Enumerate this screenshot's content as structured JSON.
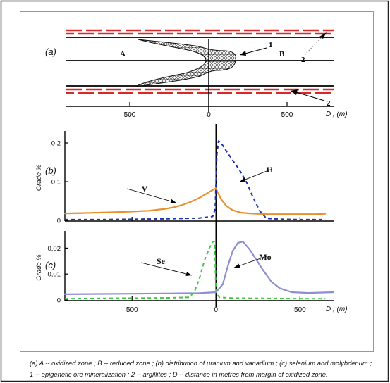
{
  "panels": {
    "a": {
      "panel_label": "(a)",
      "zone_a_label": "A",
      "zone_b_label": "B",
      "callout_1": "1",
      "callout_2_top": "2",
      "callout_2_bottom": "2",
      "axis_ticks": [
        "500",
        "0",
        "500"
      ],
      "axis_unit": "D , (m)"
    }
  },
  "chart_data": [
    {
      "panel_label": "(b)",
      "type": "line",
      "xlabel": "D , (m)",
      "ylabel": "Grade %",
      "xlim": [
        -900,
        700
      ],
      "ylim": [
        0,
        0.22
      ],
      "xticks": [
        -500,
        0,
        500
      ],
      "xtick_labels": [
        "500",
        "0",
        "500"
      ],
      "yticks": [
        0,
        0.1,
        0.2
      ],
      "ytick_labels": [
        "0",
        "0,1",
        "0,2"
      ],
      "grid": false,
      "series": [
        {
          "name": "V",
          "color": "#e8912c",
          "style": "solid",
          "x": [
            -900,
            -800,
            -700,
            -600,
            -500,
            -400,
            -300,
            -250,
            -200,
            -150,
            -100,
            -60,
            -30,
            -10,
            0,
            10,
            30,
            60,
            100,
            150,
            200,
            300,
            400,
            500,
            600,
            650
          ],
          "y": [
            0.018,
            0.019,
            0.02,
            0.021,
            0.023,
            0.025,
            0.03,
            0.034,
            0.04,
            0.048,
            0.058,
            0.068,
            0.076,
            0.081,
            0.083,
            0.072,
            0.055,
            0.038,
            0.026,
            0.02,
            0.018,
            0.016,
            0.016,
            0.016,
            0.016,
            0.017
          ]
        },
        {
          "name": "U",
          "color": "#1f2fb4",
          "style": "dashed",
          "x": [
            -900,
            -700,
            -500,
            -300,
            -100,
            -20,
            -5,
            0,
            5,
            15,
            30,
            60,
            100,
            140,
            180,
            220,
            260,
            300,
            400,
            500,
            650
          ],
          "y": [
            0.002,
            0.002,
            0.003,
            0.004,
            0.006,
            0.01,
            0.03,
            0.1,
            0.17,
            0.205,
            0.2,
            0.18,
            0.155,
            0.13,
            0.1,
            0.06,
            0.025,
            0.005,
            0.003,
            0.002,
            0.002
          ]
        }
      ],
      "annotations": [
        "V",
        "U"
      ]
    },
    {
      "panel_label": "(c)",
      "type": "line",
      "xlabel": "D , (m)",
      "ylabel": "Grade %",
      "xlim": [
        -900,
        700
      ],
      "ylim": [
        0,
        0.025
      ],
      "xticks": [
        -500,
        0,
        500
      ],
      "xtick_labels": [
        "500",
        "0",
        "500"
      ],
      "yticks": [
        0,
        0.01,
        0.02
      ],
      "ytick_labels": [
        "0",
        "0,01",
        "0,02"
      ],
      "grid": false,
      "series": [
        {
          "name": "Se",
          "color": "#3cc83c",
          "style": "dashed",
          "x": [
            -900,
            -700,
            -500,
            -300,
            -160,
            -130,
            -100,
            -70,
            -40,
            -20,
            -10,
            -5,
            0,
            20,
            100,
            300,
            500,
            650
          ],
          "y": [
            0.0005,
            0.0006,
            0.0007,
            0.0008,
            0.001,
            0.003,
            0.008,
            0.015,
            0.02,
            0.0225,
            0.0225,
            0.015,
            0.003,
            0.001,
            0.0007,
            0.0006,
            0.0005,
            0.0005
          ]
        },
        {
          "name": "Mo",
          "color": "#8e8ed6",
          "style": "solid",
          "x": [
            -900,
            -700,
            -500,
            -300,
            -100,
            0,
            40,
            70,
            100,
            130,
            160,
            200,
            240,
            280,
            330,
            380,
            450,
            550,
            700
          ],
          "y": [
            0.0022,
            0.0023,
            0.0024,
            0.0025,
            0.0026,
            0.003,
            0.006,
            0.013,
            0.019,
            0.022,
            0.0225,
            0.0195,
            0.0155,
            0.0115,
            0.007,
            0.0045,
            0.003,
            0.0027,
            0.003
          ]
        }
      ],
      "annotations": [
        "Se",
        "Mo"
      ]
    }
  ],
  "caption": {
    "line1": "(a)  A -- oxidized zone ; B -- reduced zone ; (b)  distribution of uranium and vanadium ; (c) selenium and molybdenum ;",
    "line2": "1 -- epigenetic ore mineralization ; 2 -- argillites ;  D -- distance in metres from margin of oxidized zone."
  },
  "colors": {
    "argillite_red": "#d62a2a",
    "vanadium": "#e8912c",
    "uranium": "#1f2fb4",
    "selenium": "#3cc83c",
    "molybdenum": "#8e8ed6"
  }
}
